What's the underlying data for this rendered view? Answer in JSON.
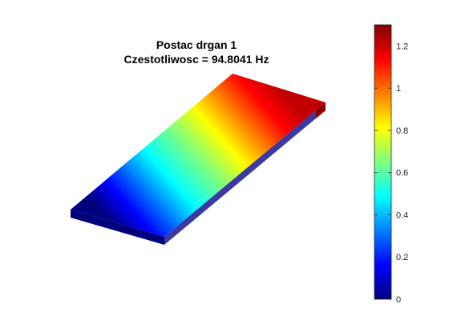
{
  "figure": {
    "title_line1": "Postac drgan 1",
    "title_line2": "Czestotliwosc = 94.8041 Hz"
  },
  "colorbar": {
    "colormap": "jet",
    "range": [
      0,
      1.3
    ],
    "ticks": [
      "0",
      "0.2",
      "0.4",
      "0.6",
      "0.8",
      "1",
      "1.2"
    ],
    "tick_values": [
      0,
      0.2,
      0.4,
      0.6,
      0.8,
      1.0,
      1.2
    ]
  },
  "plate": {
    "low_end_value": 0,
    "high_end_value": 1.3
  }
}
